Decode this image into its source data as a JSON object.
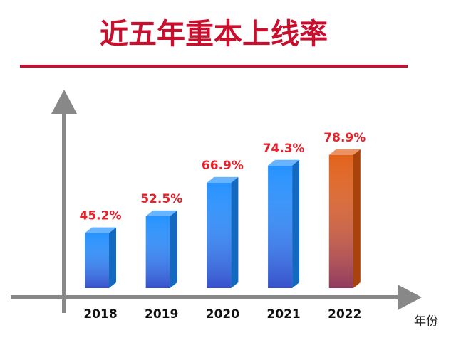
{
  "chart_data": {
    "type": "bar3d",
    "title": "近五年重本上线率",
    "x_label": "年份",
    "categories": [
      "2018",
      "2019",
      "2020",
      "2021",
      "2022"
    ],
    "values": [
      45.2,
      52.5,
      66.9,
      74.3,
      78.9
    ],
    "value_labels": [
      "45.2%",
      "52.5%",
      "66.9%",
      "74.3%",
      "78.9%"
    ],
    "colors": [
      "#1a8cff",
      "#1a8cff",
      "#1a8cff",
      "#1a8cff",
      "#e05a10"
    ]
  }
}
